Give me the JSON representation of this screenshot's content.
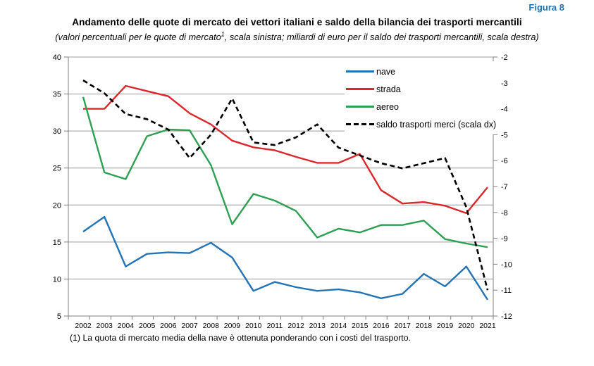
{
  "figure": {
    "label": "Figura 8"
  },
  "title": "Andamento delle quote di mercato dei vettori italiani e saldo della bilancia dei trasporti mercantili",
  "subtitle": {
    "pre": "(valori percentuali per le quote di mercato",
    "sup": "1",
    "post": ", scala sinistra; miliardi di euro per il saldo dei trasporti mercantili, scala destra)"
  },
  "footnote": "(1) La quota di mercato media della nave è ottenuta ponderando con i costi del trasporto.",
  "colors": {
    "figure_label": "#2573B0",
    "gridline": "#9C9C9C",
    "axis": "#7F7F7F",
    "text": "#000000",
    "background": "#FFFFFF",
    "nave": "#2373B5",
    "strada": "#D9282B",
    "aereo": "#2DA052",
    "saldo": "#000000"
  },
  "chart_data": {
    "type": "line",
    "title": "Andamento delle quote di mercato dei vettori italiani e saldo della bilancia dei trasporti mercantili",
    "x": [
      2002,
      2003,
      2004,
      2005,
      2006,
      2007,
      2008,
      2009,
      2010,
      2011,
      2012,
      2013,
      2014,
      2015,
      2016,
      2017,
      2018,
      2019,
      2020,
      2021
    ],
    "series": [
      {
        "name": "nave",
        "axis": "left",
        "color": "#2373B5",
        "style": "solid",
        "values": [
          16.4,
          18.4,
          11.7,
          13.4,
          13.6,
          13.5,
          14.9,
          12.9,
          8.4,
          9.6,
          8.9,
          8.4,
          8.6,
          8.2,
          7.4,
          8.0,
          10.7,
          9.0,
          11.7,
          7.2
        ]
      },
      {
        "name": "strada",
        "axis": "left",
        "color": "#D9282B",
        "style": "solid",
        "values": [
          33.0,
          33.0,
          36.1,
          35.4,
          34.7,
          32.4,
          30.9,
          28.7,
          27.8,
          27.4,
          26.5,
          25.7,
          25.7,
          26.9,
          22.0,
          20.2,
          20.4,
          19.9,
          18.9,
          22.4
        ]
      },
      {
        "name": "aereo",
        "axis": "left",
        "color": "#2DA052",
        "style": "solid",
        "values": [
          34.6,
          24.4,
          23.5,
          29.3,
          30.2,
          30.1,
          25.4,
          17.4,
          21.5,
          20.6,
          19.2,
          15.6,
          16.8,
          16.3,
          17.3,
          17.3,
          17.9,
          15.4,
          14.8,
          14.3
        ]
      },
      {
        "name": "saldo trasporti merci (scala dx)",
        "axis": "right",
        "color": "#000000",
        "style": "dashed",
        "values": [
          -2.9,
          -3.4,
          -4.2,
          -4.4,
          -4.8,
          -5.9,
          -5.0,
          -3.6,
          -5.3,
          -5.4,
          -5.1,
          -4.6,
          -5.5,
          -5.8,
          -6.1,
          -6.3,
          -6.1,
          -5.9,
          -7.8,
          -11.0
        ]
      }
    ],
    "left_axis": {
      "min": 5,
      "max": 40,
      "step": 5,
      "ticks": [
        40,
        35,
        30,
        25,
        20,
        15,
        10,
        5
      ]
    },
    "right_axis": {
      "min": -12,
      "max": -2,
      "step": 1,
      "ticks": [
        -2,
        -3,
        -4,
        -5,
        -6,
        -7,
        -8,
        -9,
        -10,
        -11,
        -12
      ]
    },
    "grid": "horizontal",
    "legend_position": "inside-top-right"
  }
}
